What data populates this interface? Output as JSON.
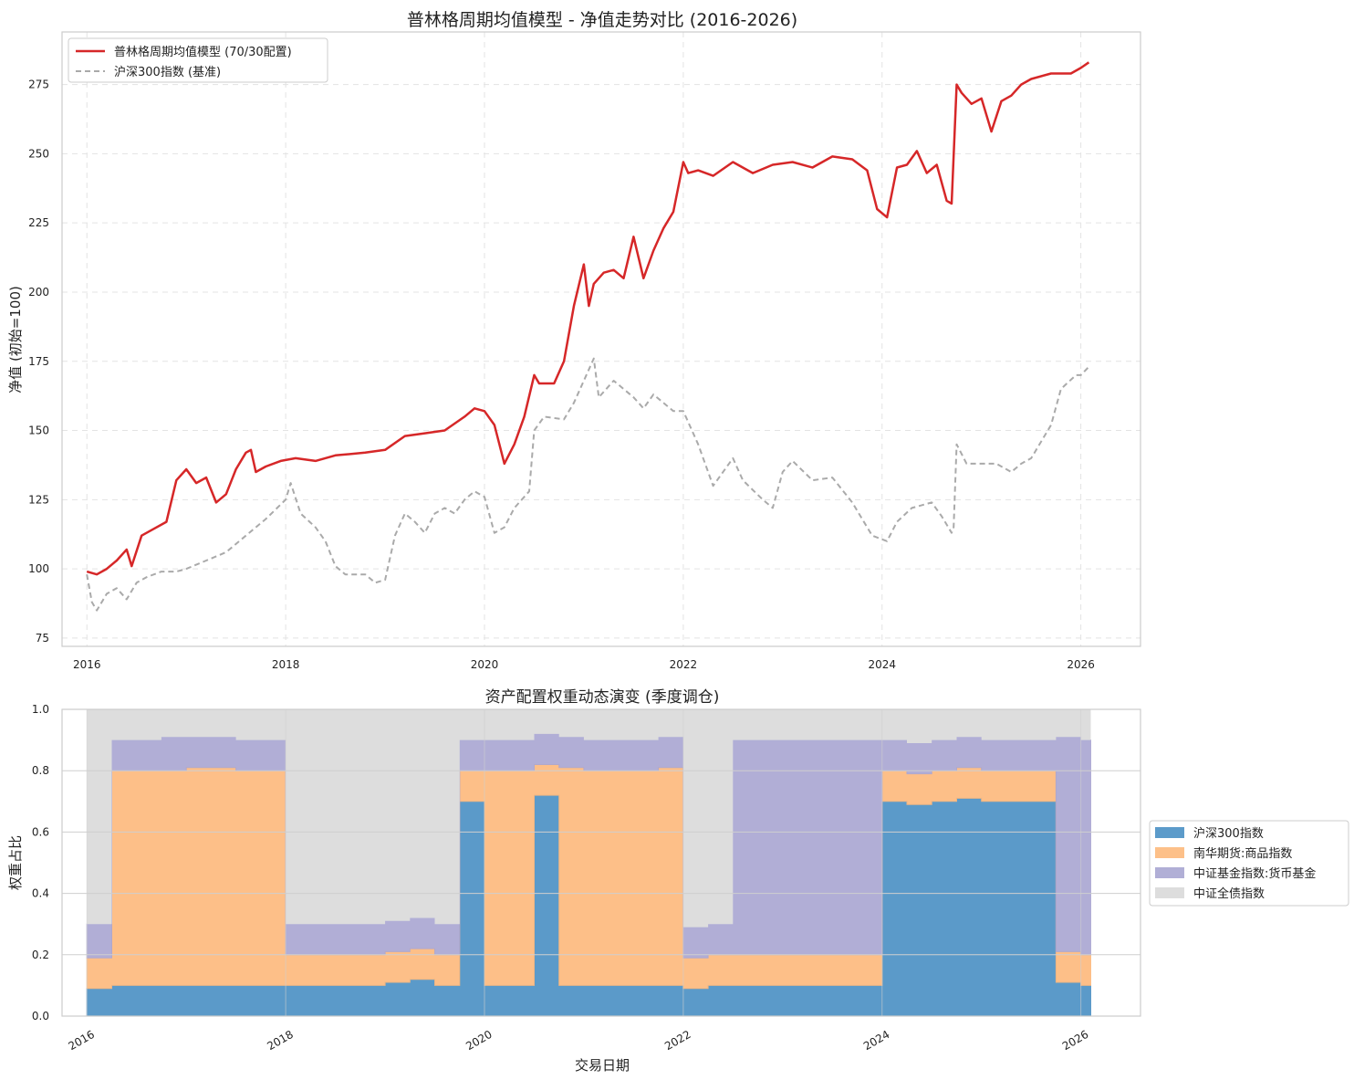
{
  "chart_data": [
    {
      "type": "line",
      "title": "普林格周期均值模型 - 净值走势对比 (2016-2026)",
      "ylabel": "净值 (初始=100)",
      "xlabel": "",
      "xlim": [
        2015.75,
        2026.6
      ],
      "ylim": [
        72,
        294
      ],
      "x_ticks": [
        2016,
        2018,
        2020,
        2022,
        2024,
        2026
      ],
      "x_tick_labels": [
        "2016",
        "2018",
        "2020",
        "2022",
        "2024",
        "2026"
      ],
      "y_ticks": [
        75,
        100,
        125,
        150,
        175,
        200,
        225,
        250,
        275
      ],
      "y_tick_labels": [
        "75",
        "100",
        "125",
        "150",
        "175",
        "200",
        "225",
        "250",
        "275"
      ],
      "grid": true,
      "legend_position": "top-left",
      "series": [
        {
          "name": "普林格周期均值模型 (70/30配置)",
          "color": "#d62728",
          "style": "solid",
          "x": [
            2016.0,
            2016.1,
            2016.2,
            2016.3,
            2016.4,
            2016.45,
            2016.55,
            2016.65,
            2016.8,
            2016.9,
            2017.0,
            2017.1,
            2017.2,
            2017.3,
            2017.4,
            2017.5,
            2017.6,
            2017.65,
            2017.7,
            2017.8,
            2017.95,
            2018.1,
            2018.3,
            2018.5,
            2018.8,
            2019.0,
            2019.2,
            2019.4,
            2019.6,
            2019.8,
            2019.9,
            2020.0,
            2020.1,
            2020.2,
            2020.3,
            2020.4,
            2020.5,
            2020.55,
            2020.7,
            2020.8,
            2020.9,
            2021.0,
            2021.05,
            2021.1,
            2021.2,
            2021.3,
            2021.4,
            2021.5,
            2021.6,
            2021.7,
            2021.8,
            2021.9,
            2022.0,
            2022.05,
            2022.15,
            2022.3,
            2022.5,
            2022.7,
            2022.9,
            2023.1,
            2023.3,
            2023.5,
            2023.7,
            2023.85,
            2023.95,
            2024.05,
            2024.15,
            2024.25,
            2024.35,
            2024.45,
            2024.55,
            2024.65,
            2024.7,
            2024.75,
            2024.8,
            2024.9,
            2025.0,
            2025.1,
            2025.2,
            2025.3,
            2025.4,
            2025.5,
            2025.7,
            2025.9,
            2026.0,
            2026.08
          ],
          "values": [
            99,
            98,
            100,
            103,
            107,
            101,
            112,
            114,
            117,
            132,
            136,
            131,
            133,
            124,
            127,
            136,
            142,
            143,
            135,
            137,
            139,
            140,
            139,
            141,
            142,
            143,
            148,
            149,
            150,
            155,
            158,
            157,
            152,
            138,
            145,
            155,
            170,
            167,
            167,
            175,
            195,
            210,
            195,
            203,
            207,
            208,
            205,
            220,
            205,
            215,
            223,
            229,
            247,
            243,
            244,
            242,
            247,
            243,
            246,
            247,
            245,
            249,
            248,
            244,
            230,
            227,
            245,
            246,
            251,
            243,
            246,
            233,
            232,
            275,
            272,
            268,
            270,
            258,
            269,
            271,
            275,
            277,
            279,
            279,
            281,
            283
          ]
        },
        {
          "name": "沪深300指数 (基准)",
          "color": "#aaaaaa",
          "style": "dashed",
          "x": [
            2016.0,
            2016.05,
            2016.1,
            2016.2,
            2016.3,
            2016.4,
            2016.5,
            2016.6,
            2016.75,
            2016.9,
            2017.0,
            2017.2,
            2017.4,
            2017.6,
            2017.8,
            2018.0,
            2018.05,
            2018.15,
            2018.3,
            2018.4,
            2018.5,
            2018.6,
            2018.8,
            2018.9,
            2019.0,
            2019.1,
            2019.2,
            2019.3,
            2019.4,
            2019.5,
            2019.6,
            2019.7,
            2019.8,
            2019.9,
            2020.0,
            2020.1,
            2020.2,
            2020.3,
            2020.45,
            2020.5,
            2020.6,
            2020.8,
            2020.9,
            2021.0,
            2021.1,
            2021.15,
            2021.3,
            2021.5,
            2021.6,
            2021.7,
            2021.8,
            2021.9,
            2022.0,
            2022.15,
            2022.3,
            2022.5,
            2022.6,
            2022.8,
            2022.9,
            2023.0,
            2023.1,
            2023.3,
            2023.5,
            2023.7,
            2023.9,
            2024.05,
            2024.15,
            2024.3,
            2024.5,
            2024.6,
            2024.7,
            2024.72,
            2024.75,
            2024.85,
            2025.0,
            2025.15,
            2025.3,
            2025.4,
            2025.5,
            2025.7,
            2025.8,
            2025.95,
            2026.0,
            2026.08
          ],
          "values": [
            98,
            88,
            85,
            91,
            93,
            89,
            95,
            97,
            99,
            99,
            100,
            103,
            106,
            112,
            118,
            125,
            131,
            120,
            115,
            110,
            101,
            98,
            98,
            95,
            96,
            112,
            120,
            117,
            113,
            120,
            122,
            120,
            125,
            128,
            126,
            113,
            115,
            122,
            128,
            150,
            155,
            154,
            160,
            168,
            176,
            162,
            168,
            162,
            158,
            163,
            160,
            157,
            157,
            145,
            130,
            140,
            132,
            125,
            122,
            135,
            139,
            132,
            133,
            124,
            112,
            110,
            117,
            122,
            124,
            119,
            113,
            115,
            145,
            138,
            138,
            138,
            135,
            138,
            140,
            152,
            165,
            170,
            170,
            173
          ]
        }
      ]
    },
    {
      "type": "area",
      "title": "资产配置权重动态演变 (季度调仓)",
      "xlabel": "交易日期",
      "ylabel": "权重占比",
      "xlim": [
        2015.75,
        2026.6
      ],
      "ylim": [
        0,
        1
      ],
      "x_ticks": [
        2016,
        2018,
        2020,
        2022,
        2024,
        2026
      ],
      "x_tick_labels": [
        "2016",
        "2018",
        "2020",
        "2022",
        "2024",
        "2026"
      ],
      "y_ticks": [
        0,
        0.2,
        0.4,
        0.6,
        0.8,
        1
      ],
      "y_tick_labels": [
        "0.0",
        "0.2",
        "0.4",
        "0.6",
        "0.8",
        "1.0"
      ],
      "grid": true,
      "stacked": true,
      "legend_position": "right",
      "x": [
        2016.0,
        2016.25,
        2016.5,
        2016.75,
        2017.0,
        2017.25,
        2017.5,
        2017.75,
        2018.0,
        2018.25,
        2018.5,
        2018.75,
        2019.0,
        2019.25,
        2019.5,
        2019.75,
        2020.0,
        2020.25,
        2020.5,
        2020.75,
        2021.0,
        2021.25,
        2021.5,
        2021.75,
        2022.0,
        2022.25,
        2022.5,
        2022.75,
        2023.0,
        2023.25,
        2023.5,
        2023.75,
        2024.0,
        2024.25,
        2024.5,
        2024.75,
        2025.0,
        2025.25,
        2025.5,
        2025.75,
        2026.0,
        2026.1
      ],
      "series": [
        {
          "name": "沪深300指数",
          "color": "#4a90c4",
          "values": [
            0.09,
            0.1,
            0.1,
            0.1,
            0.1,
            0.1,
            0.1,
            0.1,
            0.1,
            0.1,
            0.1,
            0.1,
            0.11,
            0.12,
            0.1,
            0.7,
            0.1,
            0.1,
            0.72,
            0.1,
            0.1,
            0.1,
            0.1,
            0.1,
            0.09,
            0.1,
            0.1,
            0.1,
            0.1,
            0.1,
            0.1,
            0.1,
            0.7,
            0.69,
            0.7,
            0.71,
            0.7,
            0.7,
            0.7,
            0.11,
            0.1,
            0.1
          ]
        },
        {
          "name": "南华期货:商品指数",
          "color": "#fdb97c",
          "values": [
            0.1,
            0.7,
            0.7,
            0.7,
            0.71,
            0.71,
            0.7,
            0.7,
            0.1,
            0.1,
            0.1,
            0.1,
            0.1,
            0.1,
            0.1,
            0.1,
            0.7,
            0.7,
            0.1,
            0.71,
            0.7,
            0.7,
            0.7,
            0.71,
            0.1,
            0.1,
            0.1,
            0.1,
            0.1,
            0.1,
            0.1,
            0.1,
            0.1,
            0.1,
            0.1,
            0.1,
            0.1,
            0.1,
            0.1,
            0.1,
            0.1,
            0.1
          ]
        },
        {
          "name": "中证基金指数:货币基金",
          "color": "#a9a6d2",
          "values": [
            0.11,
            0.1,
            0.1,
            0.11,
            0.1,
            0.1,
            0.1,
            0.1,
            0.1,
            0.1,
            0.1,
            0.1,
            0.1,
            0.1,
            0.1,
            0.1,
            0.1,
            0.1,
            0.1,
            0.1,
            0.1,
            0.1,
            0.1,
            0.1,
            0.1,
            0.1,
            0.7,
            0.7,
            0.7,
            0.7,
            0.7,
            0.7,
            0.1,
            0.1,
            0.1,
            0.1,
            0.1,
            0.1,
            0.1,
            0.7,
            0.7,
            0.7
          ]
        },
        {
          "name": "中证全债指数",
          "color": "#dddddd",
          "values": [
            0.7,
            0.1,
            0.1,
            0.09,
            0.09,
            0.09,
            0.1,
            0.1,
            0.7,
            0.7,
            0.7,
            0.7,
            0.69,
            0.68,
            0.7,
            0.1,
            0.1,
            0.1,
            0.08,
            0.09,
            0.1,
            0.1,
            0.1,
            0.09,
            0.71,
            0.7,
            0.1,
            0.1,
            0.1,
            0.1,
            0.1,
            0.1,
            0.1,
            0.11,
            0.1,
            0.09,
            0.1,
            0.1,
            0.1,
            0.09,
            0.1,
            0.1
          ]
        }
      ]
    }
  ]
}
